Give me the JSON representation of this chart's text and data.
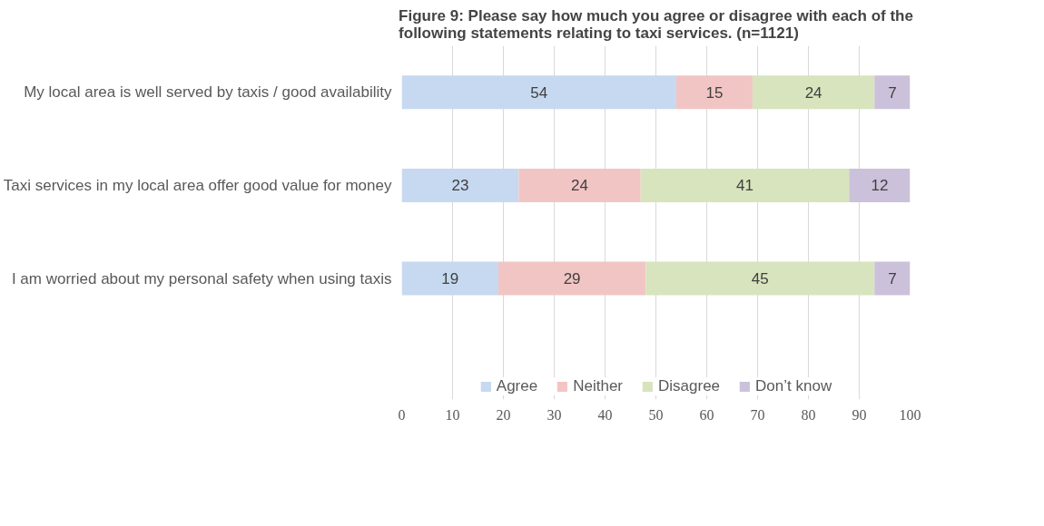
{
  "chart_data": {
    "type": "bar",
    "orientation": "horizontal",
    "stacked": true,
    "title": "Figure 9: Please say how much you agree or disagree with each of the following statements relating to taxi services. (n=1121)",
    "categories": [
      "My local area is well served by taxis / good availability",
      "Taxi services in my local area offer good value for money",
      "I am worried about my personal safety when using taxis"
    ],
    "series": [
      {
        "name": "Agree",
        "color": "#c6d9f0",
        "values": [
          54,
          23,
          19
        ]
      },
      {
        "name": "Neither",
        "color": "#f2c5c5",
        "values": [
          15,
          24,
          29
        ]
      },
      {
        "name": "Disagree",
        "color": "#d7e4bd",
        "values": [
          24,
          41,
          45
        ]
      },
      {
        "name": "Don’t know",
        "color": "#ccc1da",
        "values": [
          7,
          12,
          7
        ]
      }
    ],
    "xlim": [
      0,
      100
    ],
    "xticks": [
      0,
      10,
      20,
      30,
      40,
      50,
      60,
      70,
      80,
      90,
      100
    ],
    "grid": "x",
    "legend": "bottom",
    "data_labels": true
  }
}
